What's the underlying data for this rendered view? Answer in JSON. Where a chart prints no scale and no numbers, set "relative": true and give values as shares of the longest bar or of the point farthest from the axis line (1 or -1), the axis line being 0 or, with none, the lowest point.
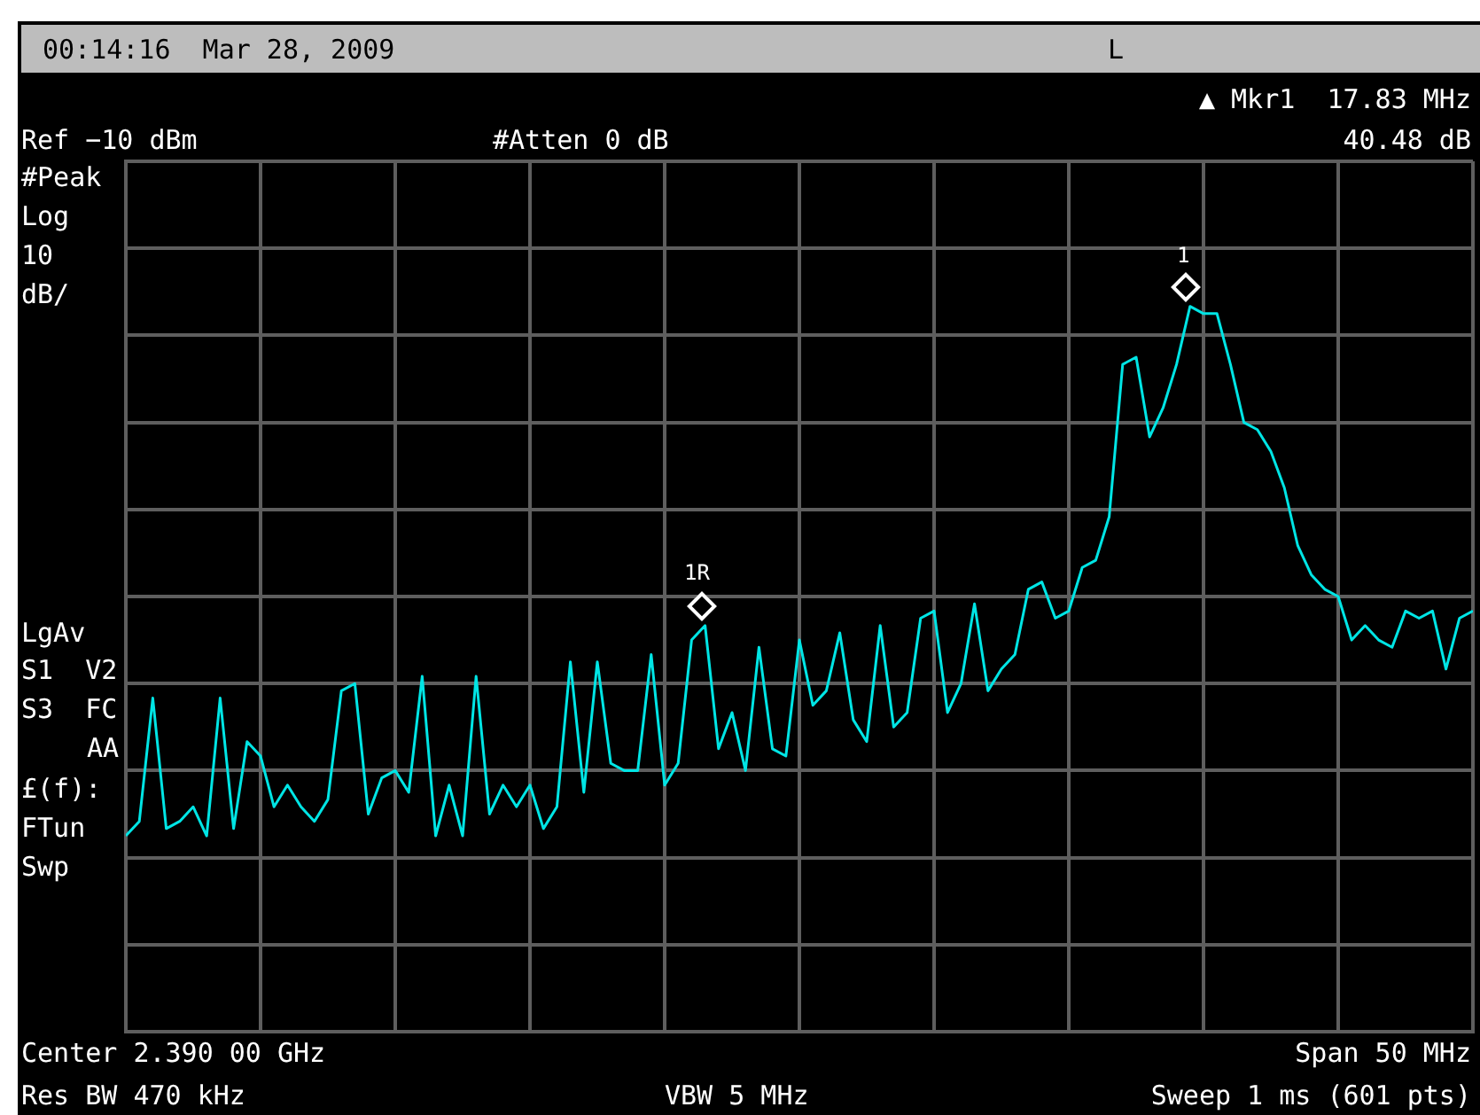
{
  "chart_data": {
    "type": "line",
    "title": "00:14:16  Mar 28, 2009",
    "relative": true,
    "annotations": [
      "L",
      "▲ Mkr1  17.83 MHz",
      "Ref −10 dBm",
      "#Atten 0 dB",
      "40.48 dB",
      "#Peak",
      "Log",
      "10",
      "dB/",
      "LgAv",
      "S1  V2",
      "S3  FC",
      "AA",
      "£(f):",
      "FTun",
      "Swp",
      "Center 2.390 00 GHz",
      "Span 50 MHz",
      "Res BW 470 kHz",
      "VBW 5 MHz",
      "Sweep 1 ms (601 pts)",
      "1R",
      "1"
    ],
    "categories": [
      null,
      null,
      null,
      null,
      null,
      null,
      null,
      null,
      null,
      null,
      null,
      null,
      null,
      null,
      null,
      null,
      null,
      null,
      null,
      null,
      null,
      null,
      null,
      null,
      null,
      null,
      null,
      null,
      null,
      null,
      null,
      null,
      null,
      null,
      null,
      null,
      null,
      null,
      null,
      null,
      null,
      null,
      null,
      null,
      null,
      null,
      null,
      null,
      null,
      null,
      null,
      null,
      null,
      null,
      null,
      null,
      null,
      null,
      null,
      null,
      null,
      null,
      null,
      null,
      null,
      null,
      null,
      null,
      null,
      null,
      null,
      null,
      null,
      null,
      null,
      null,
      null,
      null,
      null,
      null,
      null,
      null,
      null,
      null,
      null,
      null,
      null,
      null,
      null,
      null,
      null,
      null,
      null,
      null,
      null,
      null,
      null,
      null,
      null,
      null,
      null
    ],
    "series": [
      {
        "type": "line",
        "color": "#00e5e5",
        "marker": "none",
        "values": [
          0.27,
          0.29,
          0.46,
          0.28,
          0.29,
          0.31,
          0.27,
          0.46,
          0.28,
          0.4,
          0.38,
          0.31,
          0.34,
          0.31,
          0.29,
          0.32,
          0.47,
          0.48,
          0.3,
          0.35,
          0.36,
          0.33,
          0.49,
          0.27,
          0.34,
          0.27,
          0.49,
          0.3,
          0.34,
          0.31,
          0.34,
          0.28,
          0.31,
          0.51,
          0.33,
          0.51,
          0.37,
          0.36,
          0.36,
          0.52,
          0.34,
          0.37,
          0.54,
          0.56,
          0.39,
          0.44,
          0.36,
          0.53,
          0.39,
          0.38,
          0.54,
          0.45,
          0.47,
          0.55,
          0.43,
          0.4,
          0.56,
          0.42,
          0.44,
          0.57,
          0.58,
          0.44,
          0.48,
          0.59,
          0.47,
          0.5,
          0.52,
          0.61,
          0.62,
          0.57,
          0.58,
          0.64,
          0.65,
          0.71,
          0.92,
          0.93,
          0.82,
          0.86,
          0.92,
          1,
          0.99,
          0.99,
          0.92,
          0.84,
          0.83,
          0.8,
          0.75,
          0.67,
          0.63,
          0.61,
          0.6,
          0.54,
          0.56,
          0.54,
          0.53,
          0.58,
          0.57,
          0.58,
          0.5,
          0.57,
          0.58
        ]
      }
    ],
    "grid": true,
    "legend": false
  }
}
